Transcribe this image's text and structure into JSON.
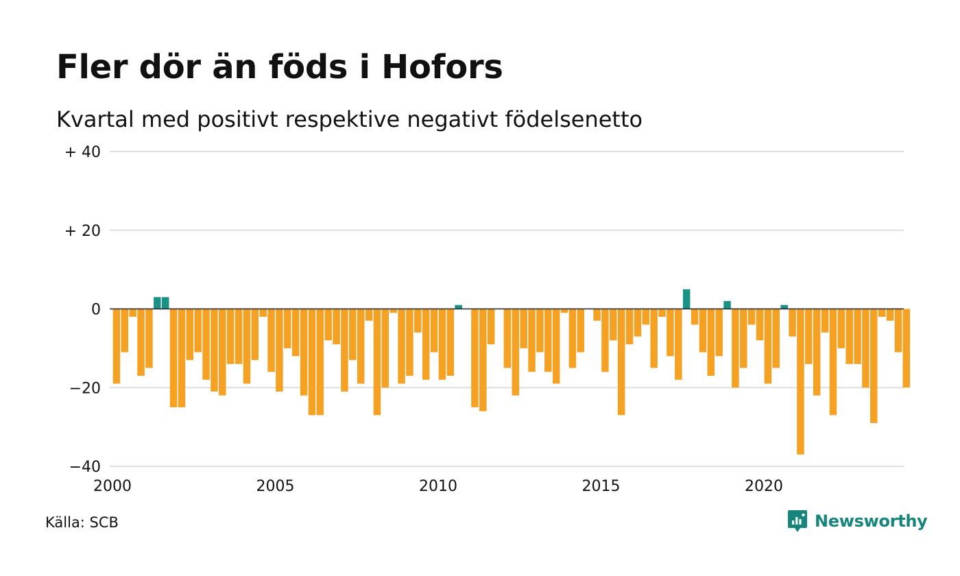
{
  "title": "Fler dör än föds i Hofors",
  "subtitle": "Kvartal med positivt respektive negativt födelsenetto",
  "source": "Källa: SCB",
  "brand": {
    "name": "Newsworthy",
    "color": "#16857b"
  },
  "colors": {
    "positive": "#1a9286",
    "negative": "#f4a124",
    "grid": "#dedede",
    "zero_line": "#222222"
  },
  "chart_data": {
    "type": "bar",
    "title": "Fler dör än föds i Hofors",
    "subtitle": "Kvartal med positivt respektive negativt födelsenetto",
    "ylim": [
      -40,
      40
    ],
    "y_ticks": [
      {
        "value": 40,
        "label": "+ 40"
      },
      {
        "value": 20,
        "label": "+ 20"
      },
      {
        "value": 0,
        "label": "0"
      },
      {
        "value": -20,
        "label": "−20"
      },
      {
        "value": -40,
        "label": "−40"
      }
    ],
    "x_ticks": [
      {
        "value": 2000,
        "label": "2000"
      },
      {
        "value": 2005,
        "label": "2005"
      },
      {
        "value": 2010,
        "label": "2010"
      },
      {
        "value": 2015,
        "label": "2015"
      },
      {
        "value": 2020,
        "label": "2020"
      }
    ],
    "grid": true,
    "legend": "none",
    "start_year": 2000,
    "periods_per_year": 4,
    "values": [
      -19,
      -11,
      -2,
      -17,
      -15,
      3,
      3,
      -25,
      -25,
      -13,
      -11,
      -18,
      -21,
      -22,
      -14,
      -14,
      -19,
      -13,
      -2,
      -16,
      -21,
      -10,
      -12,
      -22,
      -27,
      -27,
      -8,
      -9,
      -21,
      -13,
      -19,
      -3,
      -27,
      -20,
      -1,
      -19,
      -17,
      -6,
      -18,
      -11,
      -18,
      -17,
      1,
      0,
      -25,
      -26,
      -9,
      0,
      -15,
      -22,
      -10,
      -16,
      -11,
      -16,
      -19,
      -1,
      -15,
      -11,
      0,
      -3,
      -16,
      -8,
      -27,
      -9,
      -7,
      -4,
      -15,
      -2,
      -12,
      -18,
      5,
      -4,
      -11,
      -17,
      -12,
      2,
      -20,
      -15,
      -4,
      -8,
      -19,
      -15,
      1,
      -7,
      -37,
      -14,
      -22,
      -6,
      -27,
      -10,
      -14,
      -14,
      -20,
      -29,
      -2,
      -3,
      -11,
      -20
    ]
  }
}
